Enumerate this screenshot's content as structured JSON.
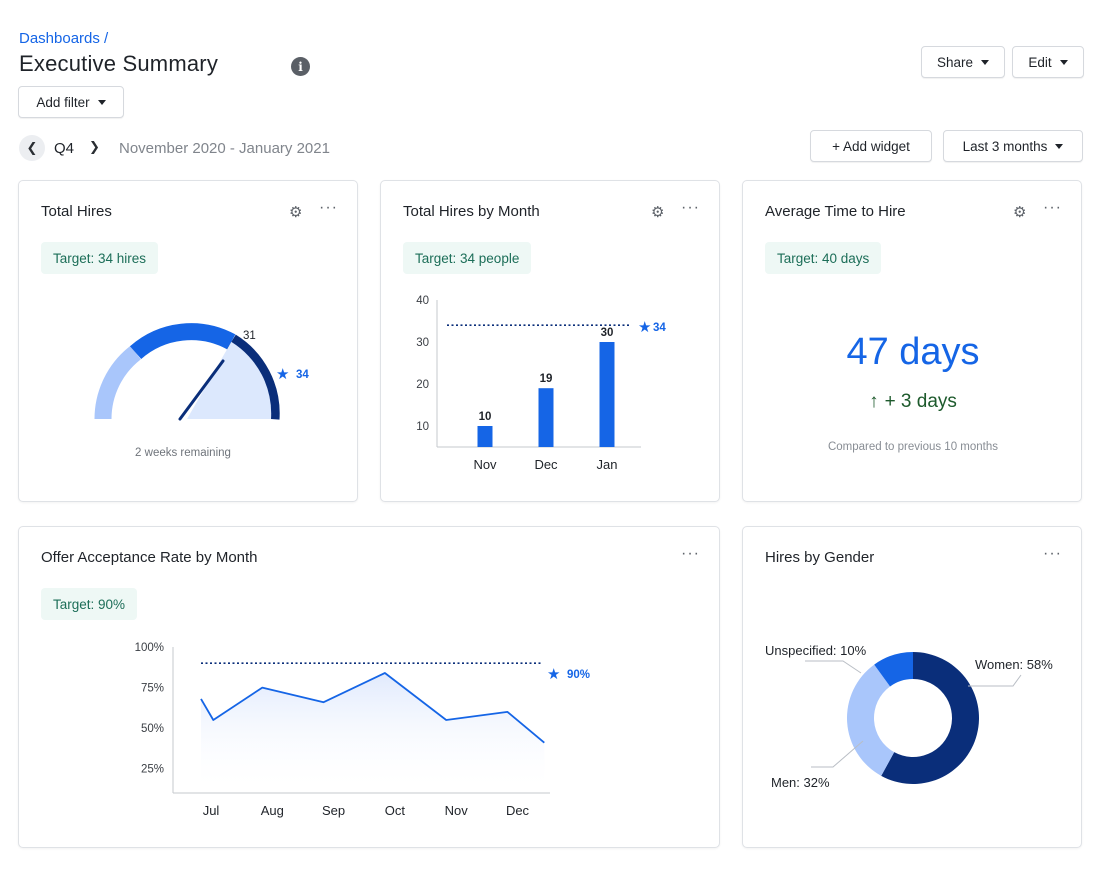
{
  "header": {
    "breadcrumb": "Dashboards /",
    "title": "Executive Summary",
    "info_icon": "info-icon",
    "share_label": "Share",
    "edit_label": "Edit",
    "add_filter_label": "Add filter"
  },
  "period": {
    "label": "Q4",
    "range": "November 2020 - January 2021",
    "prev_icon": "chevron-left-icon",
    "next_icon": "chevron-right-icon"
  },
  "toolbar": {
    "add_widget_label": "+ Add widget",
    "range_select": "Last 3 months"
  },
  "colors": {
    "accent": "#1565e6",
    "dark_blue": "#0a2e7a",
    "light_blue": "#a9c6fb",
    "target_bg": "#eef8f5",
    "target_text": "#1c6e58",
    "delta_green": "#1d5a2c"
  },
  "widgets": {
    "total_hires": {
      "title": "Total Hires",
      "target": "Target: 34 hires",
      "value_label": "31",
      "target_label": "34",
      "remaining": "2 weeks remaining"
    },
    "hires_by_month": {
      "title": "Total Hires by Month",
      "target": "Target: 34 people",
      "target_label": "34"
    },
    "avg_time": {
      "title": "Average Time to Hire",
      "target": "Target: 40 days",
      "value": "47 days",
      "delta_arrow": "↑",
      "delta": "+ 3 days",
      "compare": "Compared to previous 10 months"
    },
    "offer_rate": {
      "title": "Offer Acceptance Rate by Month",
      "target": "Target: 90%",
      "target_label": "90%"
    },
    "gender": {
      "title": "Hires by Gender"
    }
  },
  "chart_data": [
    {
      "type": "gauge",
      "value": 31,
      "target": 34,
      "labels": [
        "31",
        "34"
      ],
      "caption": "2 weeks remaining"
    },
    {
      "type": "bar",
      "categories": [
        "Nov",
        "Dec",
        "Jan"
      ],
      "values": [
        10,
        19,
        30
      ],
      "ylim": [
        5,
        40
      ],
      "yticks": [
        10,
        20,
        30,
        40
      ],
      "target": 34,
      "grid": false
    },
    {
      "type": "line",
      "categories": [
        "Jul",
        "Aug",
        "Sep",
        "Oct",
        "Nov",
        "Dec"
      ],
      "x": [
        0,
        0.2,
        1,
        2,
        3,
        4,
        5,
        5.6
      ],
      "values": [
        68,
        55,
        75,
        66,
        84,
        55,
        60,
        41
      ],
      "ylim": [
        10,
        100
      ],
      "yticks": [
        "100%",
        "75%",
        "50%",
        "25%"
      ],
      "ytick_values": [
        100,
        75,
        50,
        25
      ],
      "target": 90,
      "grid": false
    },
    {
      "type": "pie",
      "labels": [
        "Women: 58%",
        "Men: 32%",
        "Unspecified: 10%"
      ],
      "values": [
        58,
        32,
        10
      ],
      "colors": [
        "#0a2e7a",
        "#a9c6fb",
        "#1565e6"
      ]
    }
  ]
}
